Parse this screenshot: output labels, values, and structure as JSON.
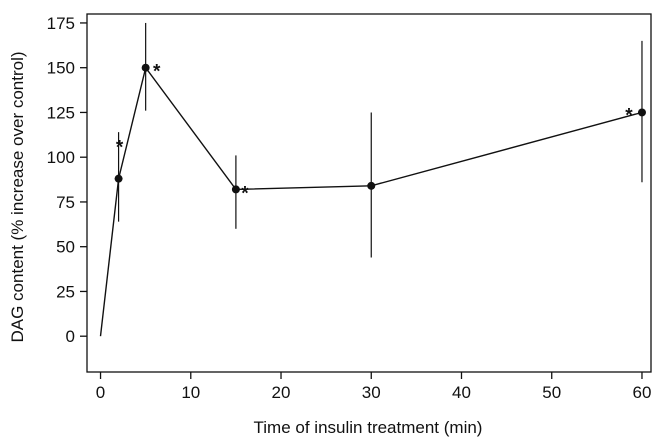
{
  "chart_data": {
    "type": "line",
    "title": "",
    "xlabel": "Time of insulin treatment (min)",
    "ylabel": "DAG content (% increase over control)",
    "xlim": [
      -1.5,
      61
    ],
    "ylim": [
      -20,
      180
    ],
    "xticks": [
      0,
      10,
      20,
      30,
      40,
      50,
      60
    ],
    "yticks": [
      0,
      25,
      50,
      75,
      100,
      125,
      150,
      175
    ],
    "grid": false,
    "legend": "none",
    "colors": {
      "line": "#111111",
      "marker": "#111111",
      "axis": "#111111"
    },
    "series": [
      {
        "x": [
          0,
          2,
          5,
          15,
          30,
          60
        ],
        "y": [
          0,
          88,
          150,
          82,
          84,
          125
        ],
        "error_low": [
          0,
          64,
          126,
          60,
          44,
          86
        ],
        "error_high": [
          0,
          114,
          175,
          101,
          125,
          165
        ],
        "significant": [
          false,
          true,
          true,
          true,
          false,
          true
        ]
      }
    ],
    "annotation_symbol": "*"
  }
}
